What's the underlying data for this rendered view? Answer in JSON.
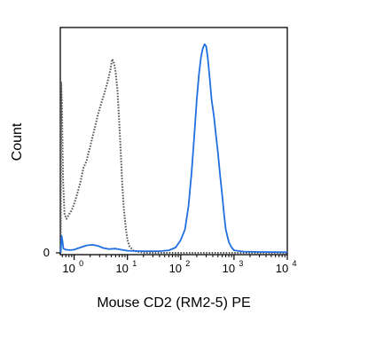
{
  "chart_data": {
    "type": "line",
    "title": "",
    "xlabel": "Mouse CD2 (RM2-5) PE",
    "ylabel": "Count",
    "x_scale": "log",
    "xlim": [
      0.55,
      10000
    ],
    "ylim": [
      0,
      100
    ],
    "x_ticks": [
      {
        "value": 1,
        "base": "10",
        "exp": "0"
      },
      {
        "value": 10,
        "base": "10",
        "exp": "1"
      },
      {
        "value": 100,
        "base": "10",
        "exp": "2"
      },
      {
        "value": 1000,
        "base": "10",
        "exp": "3"
      },
      {
        "value": 10000,
        "base": "10",
        "exp": "4"
      }
    ],
    "y_ticks": [
      {
        "value": 0,
        "label": "0"
      }
    ],
    "series": [
      {
        "style": "dotted",
        "color": "#555555",
        "points": [
          [
            0.56,
            0
          ],
          [
            0.57,
            80
          ],
          [
            0.59,
            70
          ],
          [
            0.62,
            34
          ],
          [
            0.66,
            18
          ],
          [
            0.72,
            16
          ],
          [
            0.8,
            18
          ],
          [
            0.9,
            20
          ],
          [
            1.0,
            23
          ],
          [
            1.15,
            28
          ],
          [
            1.3,
            33
          ],
          [
            1.5,
            40
          ],
          [
            1.7,
            43
          ],
          [
            2.0,
            50
          ],
          [
            2.4,
            58
          ],
          [
            2.8,
            65
          ],
          [
            3.2,
            70
          ],
          [
            3.6,
            74
          ],
          [
            4.0,
            78
          ],
          [
            4.4,
            82
          ],
          [
            4.8,
            86
          ],
          [
            5.2,
            91
          ],
          [
            5.6,
            89
          ],
          [
            6.0,
            85
          ],
          [
            6.5,
            76
          ],
          [
            7.0,
            62
          ],
          [
            7.5,
            47
          ],
          [
            8.0,
            32
          ],
          [
            8.6,
            20
          ],
          [
            9.3,
            12
          ],
          [
            10.0,
            6
          ],
          [
            11.0,
            3
          ],
          [
            13.0,
            1
          ],
          [
            16.0,
            0.5
          ],
          [
            20.0,
            0
          ],
          [
            100,
            0
          ],
          [
            1000,
            0
          ],
          [
            10000,
            0
          ]
        ]
      },
      {
        "style": "solid",
        "color": "#1f6fe0",
        "points": [
          [
            0.56,
            0
          ],
          [
            0.58,
            8
          ],
          [
            0.6,
            6
          ],
          [
            0.63,
            2
          ],
          [
            0.7,
            1.5
          ],
          [
            0.85,
            1.3
          ],
          [
            1.0,
            1.5
          ],
          [
            1.3,
            2.5
          ],
          [
            1.7,
            3.5
          ],
          [
            2.2,
            3.8
          ],
          [
            2.8,
            3.3
          ],
          [
            3.5,
            2.3
          ],
          [
            4.5,
            1.8
          ],
          [
            6.0,
            2.0
          ],
          [
            8.0,
            1.4
          ],
          [
            10.0,
            1.0
          ],
          [
            20.0,
            0.8
          ],
          [
            40.0,
            0.8
          ],
          [
            60.0,
            1.2
          ],
          [
            80.0,
            2.5
          ],
          [
            100,
            6
          ],
          [
            120,
            11
          ],
          [
            140,
            22
          ],
          [
            160,
            38
          ],
          [
            180,
            55
          ],
          [
            200,
            72
          ],
          [
            220,
            84
          ],
          [
            240,
            92
          ],
          [
            260,
            96
          ],
          [
            280,
            98
          ],
          [
            300,
            97
          ],
          [
            320,
            92
          ],
          [
            350,
            82
          ],
          [
            380,
            72
          ],
          [
            420,
            64
          ],
          [
            460,
            55
          ],
          [
            500,
            47
          ],
          [
            550,
            36
          ],
          [
            600,
            27
          ],
          [
            650,
            18
          ],
          [
            700,
            11
          ],
          [
            800,
            5
          ],
          [
            900,
            2.5
          ],
          [
            1000,
            1.2
          ],
          [
            1500,
            0.6
          ],
          [
            3000,
            0.4
          ],
          [
            10000,
            0.3
          ]
        ]
      }
    ]
  }
}
